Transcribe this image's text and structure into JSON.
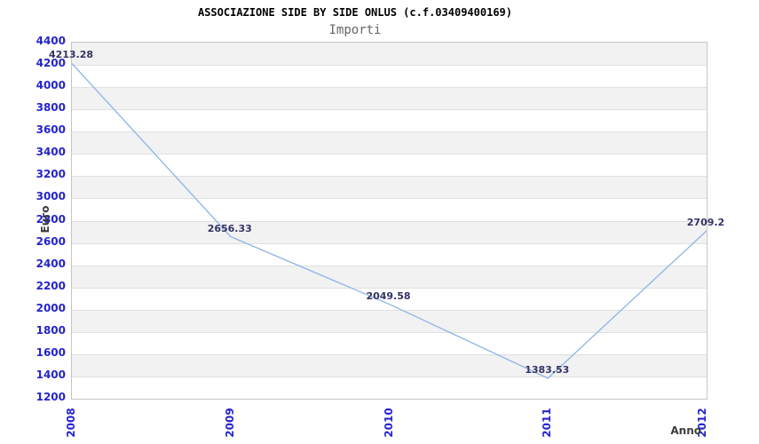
{
  "header": {
    "title": "ASSOCIAZIONE SIDE BY SIDE ONLUS (c.f.03409400169)",
    "subtitle": "Importi"
  },
  "chart_data": {
    "type": "line",
    "title": "ASSOCIAZIONE SIDE BY SIDE ONLUS (c.f.03409400169)",
    "subtitle": "Importi",
    "xlabel": "Anno",
    "ylabel": "Euro",
    "categories": [
      "2008",
      "2009",
      "2010",
      "2011",
      "2012"
    ],
    "series": [
      {
        "name": "Importi",
        "values": [
          4213.28,
          2656.33,
          2049.58,
          1383.53,
          2709.2
        ],
        "point_labels": [
          "4213.28",
          "2656.33",
          "2049.58",
          "1383.53",
          "2709.2"
        ]
      }
    ],
    "ylim": [
      1200,
      4400
    ],
    "ytick_step": 200,
    "ytick_labels": [
      "4400",
      "4200",
      "4000",
      "3800",
      "3600",
      "3400",
      "3200",
      "3000",
      "2800",
      "2600",
      "2400",
      "2200",
      "2000",
      "1800",
      "1600",
      "1400",
      "1200"
    ],
    "grid": "horizontal-bands",
    "legend": "none",
    "colors": {
      "line": "#8cb4e6",
      "tick_label": "#2424cc",
      "point_label": "#333366",
      "axis_title": "#3c3c3c",
      "band_gray": "#f2f2f2",
      "band_white": "#ffffff",
      "gridline": "#e0e0e0",
      "plot_border": "#c6c6c6",
      "title": "#000000",
      "subtitle": "#666666",
      "background": "#ffffff"
    }
  }
}
